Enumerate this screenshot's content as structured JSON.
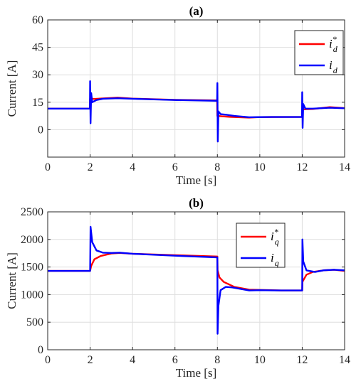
{
  "chart_data": [
    {
      "type": "line",
      "title": "(a)",
      "xlabel": "Time [s]",
      "ylabel": "Current [A]",
      "xlim": [
        0,
        14
      ],
      "ylim": [
        -15,
        60
      ],
      "xticks": [
        "0",
        "2",
        "4",
        "6",
        "8",
        "10",
        "12",
        "14"
      ],
      "yticks": [
        "0",
        "15",
        "30",
        "45",
        "60"
      ],
      "grid": true,
      "legend_placement": "top-right",
      "series": [
        {
          "name": "i_d*",
          "legend_main": "i",
          "legend_sub": "d",
          "legend_sup": "*",
          "color": "#ff0000",
          "points": [
            [
              0,
              11.5
            ],
            [
              1.99,
              11.5
            ],
            [
              2.0,
              17
            ],
            [
              2.2,
              16.8
            ],
            [
              2.6,
              17.1
            ],
            [
              3.3,
              17.5
            ],
            [
              4,
              17
            ],
            [
              6,
              16.3
            ],
            [
              7.99,
              16
            ],
            [
              8.0,
              7.5
            ],
            [
              8.2,
              7.3
            ],
            [
              8.6,
              7
            ],
            [
              9.5,
              6.6
            ],
            [
              10,
              6.9
            ],
            [
              12,
              7
            ],
            [
              12.0,
              11
            ],
            [
              12.2,
              11.2
            ],
            [
              12.5,
              11.3
            ],
            [
              13.3,
              12.3
            ],
            [
              14,
              11.8
            ]
          ]
        },
        {
          "name": "i_d",
          "legend_main": "i",
          "legend_sub": "d",
          "legend_sup": "",
          "color": "#0000ff",
          "points": [
            [
              0,
              11.5
            ],
            [
              1.99,
              11.5
            ],
            [
              2.0,
              26.5
            ],
            [
              2.02,
              3.5
            ],
            [
              2.05,
              20
            ],
            [
              2.1,
              15
            ],
            [
              2.3,
              16.2
            ],
            [
              2.6,
              16.9
            ],
            [
              3.3,
              17.2
            ],
            [
              4,
              16.9
            ],
            [
              6,
              16.2
            ],
            [
              7.99,
              15.8
            ],
            [
              8.0,
              25.5
            ],
            [
              8.02,
              -6.5
            ],
            [
              8.05,
              10
            ],
            [
              8.15,
              8.5
            ],
            [
              8.4,
              8.2
            ],
            [
              8.8,
              7.5
            ],
            [
              9.5,
              6.8
            ],
            [
              10,
              6.9
            ],
            [
              11.99,
              7
            ],
            [
              12.0,
              20.5
            ],
            [
              12.02,
              1
            ],
            [
              12.05,
              14
            ],
            [
              12.15,
              11.5
            ],
            [
              12.5,
              11.5
            ],
            [
              13.3,
              12
            ],
            [
              14,
              11.7
            ]
          ]
        }
      ]
    },
    {
      "type": "line",
      "title": "(b)",
      "xlabel": "Time [s]",
      "ylabel": "Current [A]",
      "xlim": [
        0,
        14
      ],
      "ylim": [
        0,
        2500
      ],
      "xticks": [
        "0",
        "2",
        "4",
        "6",
        "8",
        "10",
        "12",
        "14"
      ],
      "yticks": [
        "0",
        "500",
        "1000",
        "1500",
        "2000",
        "2500"
      ],
      "grid": true,
      "legend_placement": "top-right",
      "series": [
        {
          "name": "i_q*",
          "legend_main": "i",
          "legend_sub": "q",
          "legend_sup": "*",
          "color": "#ff0000",
          "points": [
            [
              0,
              1430
            ],
            [
              2,
              1430
            ],
            [
              2.05,
              1520
            ],
            [
              2.2,
              1640
            ],
            [
              2.5,
              1700
            ],
            [
              3,
              1745
            ],
            [
              3.4,
              1755
            ],
            [
              4,
              1740
            ],
            [
              6,
              1715
            ],
            [
              8,
              1690
            ],
            [
              8.01,
              1440
            ],
            [
              8.1,
              1310
            ],
            [
              8.3,
              1230
            ],
            [
              8.8,
              1140
            ],
            [
              9.5,
              1090
            ],
            [
              10,
              1085
            ],
            [
              11,
              1075
            ],
            [
              12,
              1075
            ],
            [
              12.01,
              1230
            ],
            [
              12.2,
              1360
            ],
            [
              12.5,
              1410
            ],
            [
              13,
              1440
            ],
            [
              13.5,
              1450
            ],
            [
              14,
              1430
            ]
          ]
        },
        {
          "name": "i_q",
          "legend_main": "i",
          "legend_sub": "q",
          "legend_sup": "",
          "color": "#0000ff",
          "points": [
            [
              0,
              1430
            ],
            [
              2,
              1430
            ],
            [
              2.02,
              2230
            ],
            [
              2.1,
              1950
            ],
            [
              2.3,
              1800
            ],
            [
              2.6,
              1760
            ],
            [
              3,
              1755
            ],
            [
              3.4,
              1760
            ],
            [
              4,
              1740
            ],
            [
              6,
              1705
            ],
            [
              8,
              1675
            ],
            [
              8.01,
              290
            ],
            [
              8.05,
              800
            ],
            [
              8.15,
              1080
            ],
            [
              8.4,
              1140
            ],
            [
              8.7,
              1130
            ],
            [
              9.5,
              1075
            ],
            [
              10,
              1080
            ],
            [
              11,
              1075
            ],
            [
              12,
              1075
            ],
            [
              12.01,
              2000
            ],
            [
              12.05,
              1600
            ],
            [
              12.2,
              1440
            ],
            [
              12.6,
              1410
            ],
            [
              13,
              1440
            ],
            [
              13.5,
              1450
            ],
            [
              14,
              1440
            ]
          ]
        }
      ]
    }
  ]
}
